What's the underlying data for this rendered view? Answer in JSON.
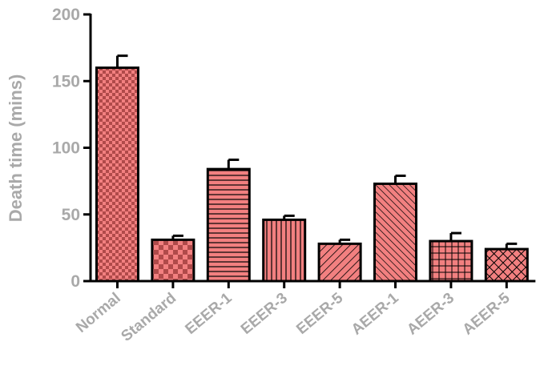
{
  "chart_data": {
    "type": "bar",
    "title": "",
    "xlabel": "",
    "ylabel": "Death time (mins)",
    "ylim": [
      0,
      200
    ],
    "yticks": [
      0,
      50,
      100,
      150,
      200
    ],
    "grid": false,
    "categories": [
      "Normal",
      "Standard",
      "EEER-1",
      "EEER-3",
      "EEER-5",
      "AEER-1",
      "AEER-3",
      "AEER-5"
    ],
    "values": [
      160,
      31,
      84,
      46,
      28,
      73,
      30,
      24
    ],
    "errors": [
      9,
      3,
      7,
      3,
      3,
      6,
      6,
      4
    ],
    "patterns": [
      "small-checker",
      "large-checker",
      "horizontal-lines",
      "vertical-lines",
      "diagonal-lines",
      "reverse-diagonal-lines",
      "grid",
      "crosshatch"
    ],
    "colors": {
      "bar_fill": "#f28080",
      "bar_stroke": "#000000",
      "axis": "#000000",
      "label_text": "#a9a9a9"
    }
  }
}
